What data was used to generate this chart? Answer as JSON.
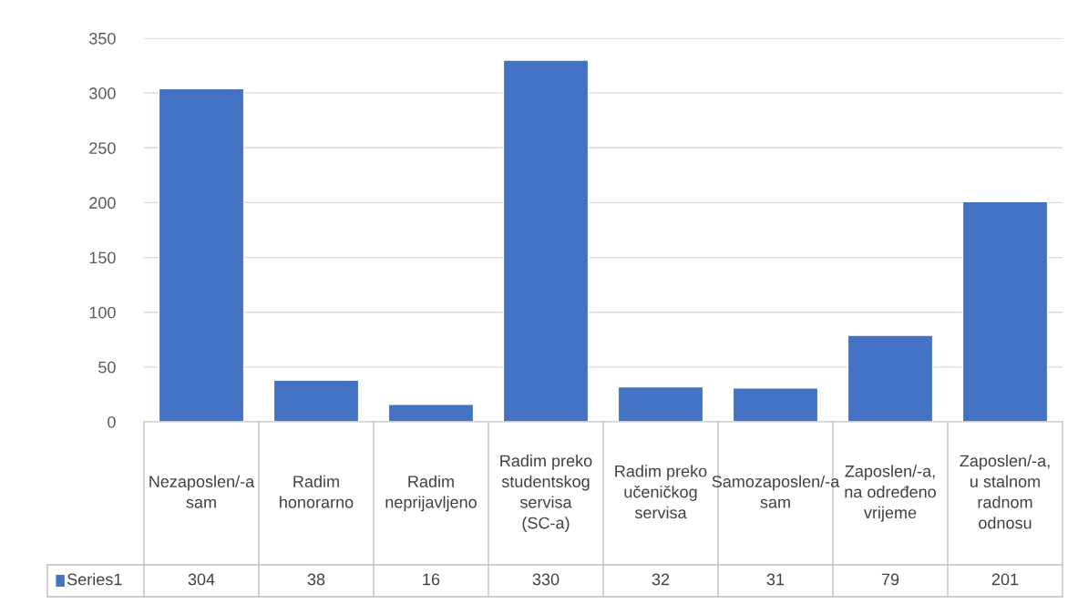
{
  "chart_data": {
    "type": "bar",
    "categories": [
      "Nezaposlen/-a sam",
      "Radim honorarno",
      "Radim neprijavljeno",
      "Radim preko studentskog servisa (SC-a)",
      "Radim preko učeničkog servisa",
      "Samozaposlen/-a sam",
      "Zaposlen/-a, na određeno vrijeme",
      "Zaposlen/-a, u stalnom radnom odnosu"
    ],
    "series": [
      {
        "name": "Series1",
        "color": "#4472c4",
        "values": [
          304,
          38,
          16,
          330,
          32,
          31,
          79,
          201
        ]
      }
    ],
    "ylim": [
      0,
      350
    ],
    "yticks": [
      0,
      50,
      100,
      150,
      200,
      250,
      300,
      350
    ],
    "grid": "y",
    "legend": "bottom",
    "data_labels": true
  }
}
